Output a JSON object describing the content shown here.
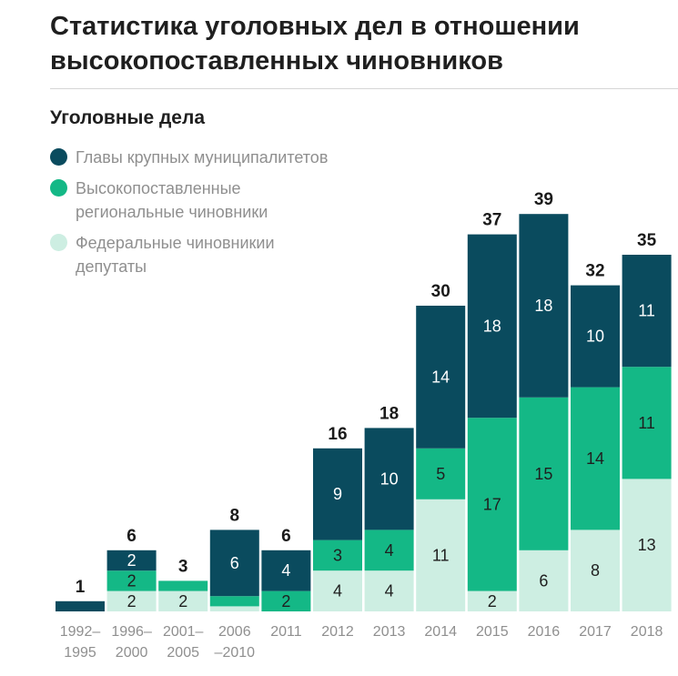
{
  "chart_data": {
    "type": "bar",
    "stacked": true,
    "title": "Статистика уголовных дел в отношении высокопоставленных чиновников",
    "subtitle": "Уголовные дела",
    "categories": [
      "1992–1995",
      "1996–2000",
      "2001–2005",
      "2006–2010",
      "2011",
      "2012",
      "2013",
      "2014",
      "2015",
      "2016",
      "2017",
      "2018"
    ],
    "category_lines": [
      [
        "1992–",
        "1995"
      ],
      [
        "1996–",
        "2000"
      ],
      [
        "2001–",
        "2005"
      ],
      [
        "2006",
        "–2010"
      ],
      [
        "2011"
      ],
      [
        "2012"
      ],
      [
        "2013"
      ],
      [
        "2014"
      ],
      [
        "2015"
      ],
      [
        "2016"
      ],
      [
        "2017"
      ],
      [
        "2018"
      ]
    ],
    "series": [
      {
        "name": "Федеральные чиновникии депутаты",
        "legend_lines": [
          "Федеральные чиновникии",
          "депутаты"
        ],
        "color": "#cdeee2",
        "values": [
          0,
          2,
          2,
          0.5,
          0,
          4,
          4,
          11,
          2,
          6,
          8,
          13
        ],
        "labels": [
          "",
          "2",
          "2",
          "",
          "",
          "4",
          "4",
          "11",
          "2",
          "6",
          "8",
          "13"
        ]
      },
      {
        "name": "Высокопоставленные региональные чиновники",
        "legend_lines": [
          "Высокопоставленные",
          "региональные чиновники"
        ],
        "color": "#14b886",
        "values": [
          0,
          2,
          1,
          1,
          2,
          3,
          4,
          5,
          17,
          15,
          14,
          11
        ],
        "labels": [
          "",
          "2",
          "",
          "",
          "2",
          "3",
          "4",
          "5",
          "17",
          "15",
          "14",
          "11"
        ]
      },
      {
        "name": "Главы крупных муниципалитетов",
        "legend_lines": [
          "Главы крупных муниципалитетов"
        ],
        "color": "#0a4b5e",
        "values": [
          1,
          2,
          0,
          6.5,
          4,
          9,
          10,
          14,
          18,
          18,
          10,
          11
        ],
        "labels": [
          "",
          "2",
          "",
          "6",
          "4",
          "9",
          "10",
          "14",
          "18",
          "18",
          "10",
          "11"
        ]
      }
    ],
    "totals": [
      "1",
      "6",
      "3",
      "8",
      "6",
      "16",
      "18",
      "30",
      "37",
      "39",
      "32",
      "35"
    ],
    "ylim": [
      0,
      39
    ],
    "legend": "top-left",
    "grid": false
  }
}
